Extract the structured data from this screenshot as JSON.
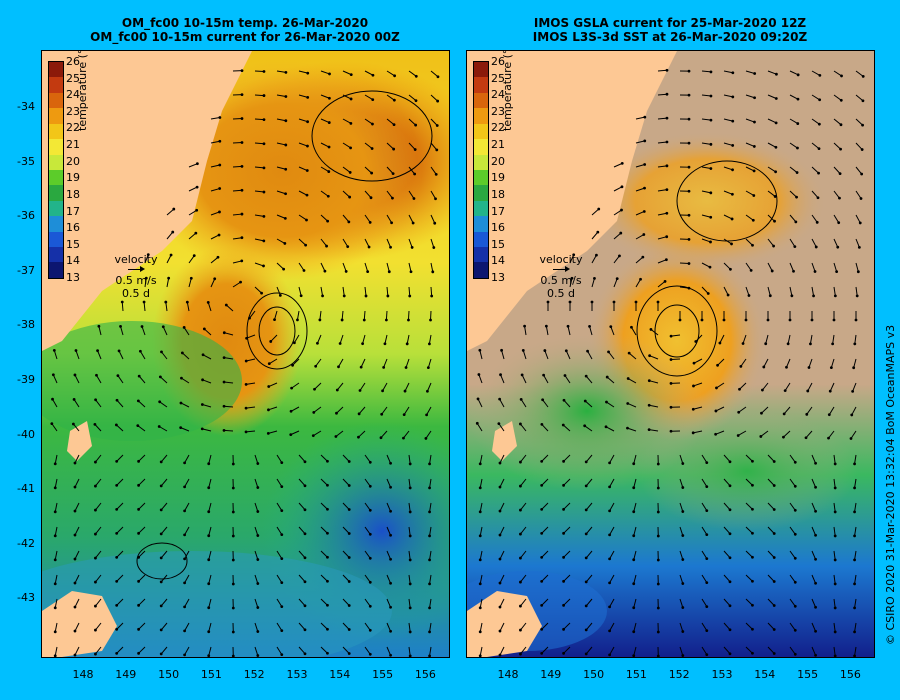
{
  "panels": [
    {
      "id": "left",
      "title_line1": "OM_fc00 10-15m temp. 26-Mar-2020",
      "title_line2": "OM_fc00 10-15m current for 26-Mar-2020 00Z"
    },
    {
      "id": "right",
      "title_line1": "IMOS GSLA current for 25-Mar-2020 12Z",
      "title_line2": "IMOS L3S-3d SST at 26-Mar-2020 09:20Z"
    }
  ],
  "colorbar": {
    "labels": [
      "26",
      "25",
      "24",
      "23",
      "22",
      "21",
      "20",
      "19",
      "18",
      "17",
      "16",
      "15",
      "14",
      "13"
    ],
    "unit": "temperature (°C)",
    "colors": [
      "#8b1a0a",
      "#c33a10",
      "#d9650c",
      "#ee9a10",
      "#f2c618",
      "#f3e835",
      "#c8e83a",
      "#5ccc2a",
      "#2aa840",
      "#22b48a",
      "#1e8ed8",
      "#1a58d6",
      "#1530a8",
      "#0c1670"
    ]
  },
  "velocity": {
    "label": "velocity",
    "speed": "0.5 m/s",
    "time": "0.5 d"
  },
  "y_axis": [
    "-34",
    "-35",
    "-36",
    "-37",
    "-38",
    "-39",
    "-40",
    "-41",
    "-42",
    "-43"
  ],
  "x_axis": [
    "148",
    "149",
    "150",
    "151",
    "152",
    "153",
    "154",
    "155",
    "156"
  ],
  "credit": "© CSIRO 2020   31-Mar-2020 13:32:04 BoM OceanMAPS v3",
  "colors": {
    "background": "#00bfff",
    "land": "#fdc894",
    "cloud": "#c8a888"
  }
}
